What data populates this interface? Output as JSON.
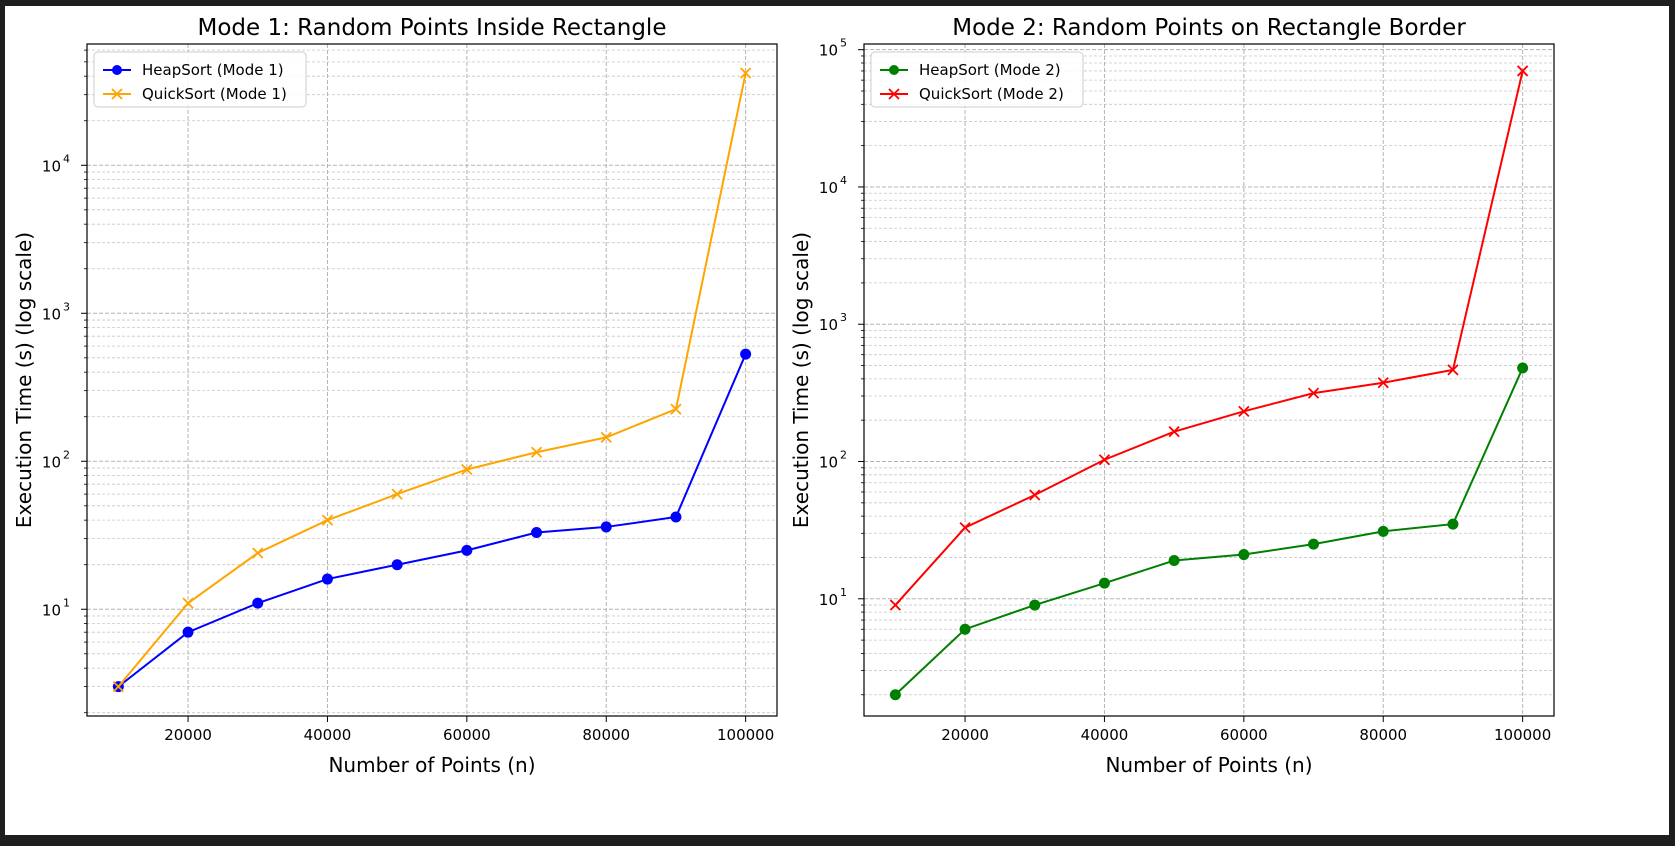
{
  "chart_data": [
    {
      "type": "line",
      "title": "Mode 1: Random Points Inside Rectangle",
      "xlabel": "Number of Points (n)",
      "ylabel": "Execution Time (s) (log scale)",
      "yscale": "log",
      "grid": true,
      "legend_placement": "top-left",
      "x": [
        10000,
        20000,
        30000,
        40000,
        50000,
        60000,
        70000,
        80000,
        90000,
        100000
      ],
      "xlim": [
        5500,
        104500
      ],
      "ylim": [
        1.9,
        66000
      ],
      "xticks": [
        20000,
        40000,
        60000,
        80000,
        100000
      ],
      "xtick_labels": [
        "20000",
        "40000",
        "60000",
        "80000",
        "100000"
      ],
      "yticks": [
        10,
        100,
        1000,
        10000
      ],
      "ytick_labels": [
        {
          "base": "10",
          "exp": "1"
        },
        {
          "base": "10",
          "exp": "2"
        },
        {
          "base": "10",
          "exp": "3"
        },
        {
          "base": "10",
          "exp": "4"
        }
      ],
      "series": [
        {
          "name": "HeapSort (Mode 1)",
          "color": "#0000ff",
          "marker": "circle",
          "values": [
            3,
            7,
            11,
            16,
            20,
            25,
            33,
            36,
            42,
            530
          ]
        },
        {
          "name": "QuickSort (Mode 1)",
          "color": "#ffa500",
          "marker": "x",
          "values": [
            3,
            11,
            24,
            40,
            60,
            88,
            115,
            145,
            225,
            42000
          ]
        }
      ]
    },
    {
      "type": "line",
      "title": "Mode 2: Random Points on Rectangle Border",
      "xlabel": "Number of Points (n)",
      "ylabel": "Execution Time (s) (log scale)",
      "yscale": "log",
      "grid": true,
      "legend_placement": "top-left",
      "x": [
        10000,
        20000,
        30000,
        40000,
        50000,
        60000,
        70000,
        80000,
        90000,
        100000
      ],
      "xlim": [
        5500,
        104500
      ],
      "ylim": [
        1.4,
        110000
      ],
      "xticks": [
        20000,
        40000,
        60000,
        80000,
        100000
      ],
      "xtick_labels": [
        "20000",
        "40000",
        "60000",
        "80000",
        "100000"
      ],
      "yticks": [
        10,
        100,
        1000,
        10000,
        100000
      ],
      "ytick_labels": [
        {
          "base": "10",
          "exp": "1"
        },
        {
          "base": "10",
          "exp": "2"
        },
        {
          "base": "10",
          "exp": "3"
        },
        {
          "base": "10",
          "exp": "4"
        },
        {
          "base": "10",
          "exp": "5"
        }
      ],
      "series": [
        {
          "name": "HeapSort (Mode 2)",
          "color": "#008000",
          "marker": "circle",
          "values": [
            2,
            6,
            9,
            13,
            19,
            21,
            25,
            31,
            35,
            480
          ]
        },
        {
          "name": "QuickSort (Mode 2)",
          "color": "#ff0000",
          "marker": "x",
          "values": [
            9,
            33,
            57,
            103,
            165,
            232,
            315,
            375,
            465,
            70000
          ]
        }
      ]
    }
  ]
}
